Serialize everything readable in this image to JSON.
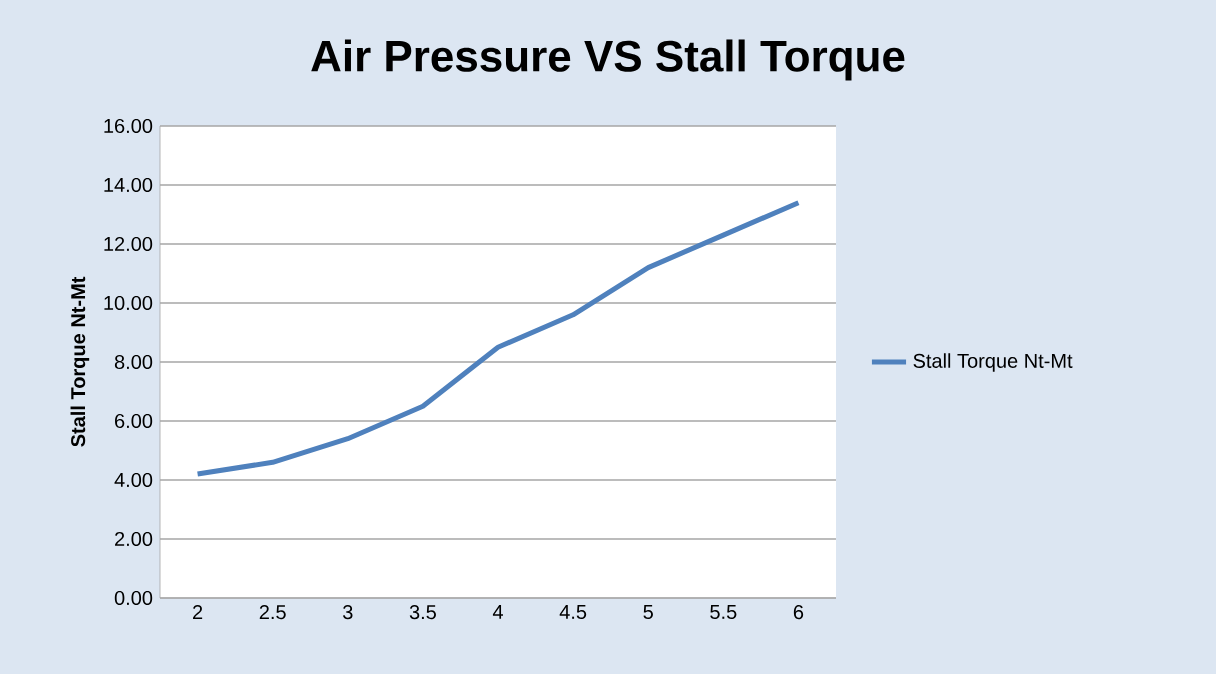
{
  "chart_data": {
    "type": "line",
    "title": "Air Pressure VS Stall Torque",
    "ylabel": "Stall Torque Nt-Mt",
    "categories": [
      "2",
      "2.5",
      "3",
      "3.5",
      "4",
      "4.5",
      "5",
      "5.5",
      "6"
    ],
    "series": [
      {
        "name": "Stall Torque Nt-Mt",
        "color": "#4f81bd",
        "values": [
          4.2,
          4.6,
          5.4,
          6.5,
          8.5,
          9.6,
          11.2,
          12.3,
          13.4
        ]
      }
    ],
    "ylim": [
      0,
      16
    ],
    "yticks": [
      {
        "value": 0,
        "label": "0.00"
      },
      {
        "value": 2,
        "label": "2.00"
      },
      {
        "value": 4,
        "label": "4.00"
      },
      {
        "value": 6,
        "label": "6.00"
      },
      {
        "value": 8,
        "label": "8.00"
      },
      {
        "value": 10,
        "label": "10.00"
      },
      {
        "value": 12,
        "label": "12.00"
      },
      {
        "value": 14,
        "label": "14.00"
      },
      {
        "value": 16,
        "label": "16.00"
      }
    ],
    "grid": "y",
    "legend": "right",
    "marker": "none",
    "line_style": "solid"
  }
}
